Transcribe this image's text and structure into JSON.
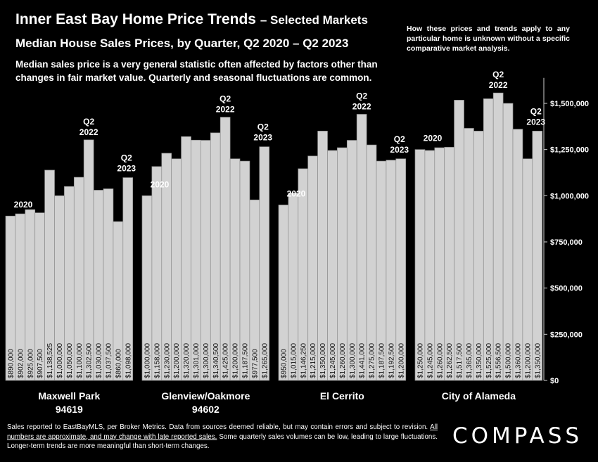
{
  "header": {
    "title": "Inner East Bay Home Price Trends",
    "title_suffix": "– Selected Markets",
    "subtitle": "Median House Sales Prices, by Quarter, Q2 2020 – Q2 2023",
    "description": "Median sales price is a very general statistic often affected by factors other than changes in fair market value. Quarterly and seasonal fluctuations are common."
  },
  "note": "How these prices and trends apply to any particular home is unknown without a specific comparative market analysis.",
  "footer": {
    "part1": "Sales reported to EastBayMLS, per Broker Metrics. Data from sources deemed reliable, but may contain errors and subject to revision. ",
    "underlined": "All numbers are approximate, and may change with late reported sales.",
    "part2": " Some quarterly sales volumes can be low, leading to large fluctuations. Longer-term trends are more meaningful than short-term changes."
  },
  "brand": "COMPASS",
  "colors": {
    "bar": "#d2d2d2",
    "bar_edge": "#8e8e8e",
    "background": "#000000",
    "text": "#ffffff"
  },
  "chart_data": {
    "type": "bar",
    "ylim": [
      0,
      1600000
    ],
    "y_ticks": [
      0,
      250000,
      500000,
      750000,
      1000000,
      1250000,
      1500000
    ],
    "y_tick_labels": [
      "$0",
      "$250,000",
      "$500,000",
      "$750,000",
      "$1,000,000",
      "$1,250,000",
      "$1,500,000"
    ],
    "annotation_start": "2020",
    "annotation_peak": [
      "Q2",
      "2022"
    ],
    "annotation_end": [
      "Q2",
      "2023"
    ],
    "groups": [
      {
        "name": [
          "Maxwell Park",
          "94619"
        ],
        "values": [
          890000,
          902000,
          925000,
          907500,
          1138525,
          1000000,
          1050000,
          1100000,
          1302500,
          1030000,
          1037500,
          860000,
          1098000
        ],
        "labels": [
          "$890,000",
          "$902,000",
          "$925,000",
          "$907,500",
          "$1,138,525",
          "$1,000,000",
          "$1,050,000",
          "$1,100,000",
          "$1,302,500",
          "$1,030,000",
          "$1,037,500",
          "$860,000",
          "$1,098,000"
        ]
      },
      {
        "name": [
          "Glenview/Oakmore",
          "94602"
        ],
        "values": [
          1000000,
          1158000,
          1230000,
          1200000,
          1320000,
          1301000,
          1300000,
          1340500,
          1425000,
          1200000,
          1187500,
          977500,
          1265000
        ],
        "labels": [
          "$1,000,000",
          "$1,158,000",
          "$1,230,000",
          "$1,200,000",
          "$1,320,000",
          "$1,301,000",
          "$1,300,000",
          "$1,340,500",
          "$1,425,000",
          "$1,200,000",
          "$1,187,500",
          "$977,500",
          "$1,265,000"
        ]
      },
      {
        "name": [
          "El Cerrito"
        ],
        "values": [
          950000,
          1015000,
          1146250,
          1215000,
          1350000,
          1245000,
          1260000,
          1300000,
          1441000,
          1275000,
          1187500,
          1192500,
          1200000
        ],
        "labels": [
          "$950,000",
          "$1,015,000",
          "$1,146,250",
          "$1,215,000",
          "$1,350,000",
          "$1,245,000",
          "$1,260,000",
          "$1,300,000",
          "$1,441,000",
          "$1,275,000",
          "$1,187,500",
          "$1,192,500",
          "$1,200,000"
        ]
      },
      {
        "name": [
          "City of Alameda"
        ],
        "values": [
          1250000,
          1245000,
          1260000,
          1262500,
          1517500,
          1365000,
          1350000,
          1525000,
          1556500,
          1500000,
          1360000,
          1200000,
          1350000
        ],
        "labels": [
          "$1,250,000",
          "$1,245,000",
          "$1,260,000",
          "$1,262,500",
          "$1,517,500",
          "$1,365,000",
          "$1,350,000",
          "$1,525,000",
          "$1,556,500",
          "$1,500,000",
          "$1,360,000",
          "$1,200,000",
          "$1,350,000"
        ]
      }
    ]
  }
}
